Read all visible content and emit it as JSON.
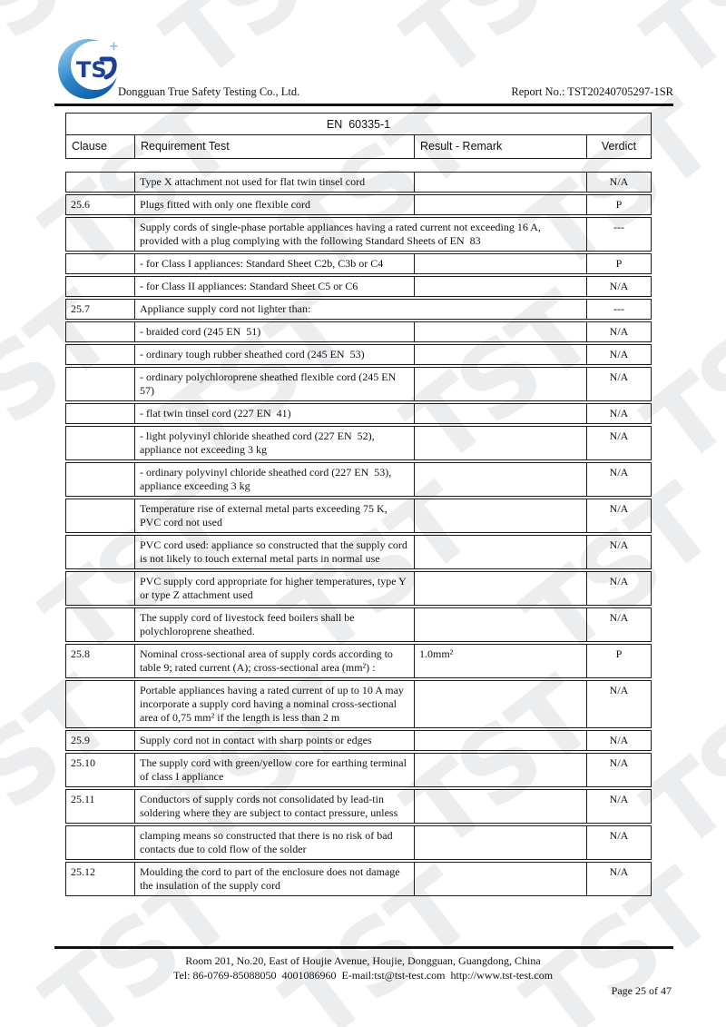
{
  "header": {
    "company": "Dongguan True Safety Testing Co., Ltd.",
    "report_no": "Report No.: TST20240705297-1SR",
    "logo_letters": "TS",
    "logo_plus": "+"
  },
  "table": {
    "title": "EN  60335-1",
    "columns": {
      "clause": "Clause",
      "requirement": "Requirement Test",
      "result": "Result - Remark",
      "verdict": "Verdict"
    },
    "rows": [
      {
        "clause": "",
        "requirement": "Type X attachment not used for flat twin tinsel cord",
        "result": "",
        "verdict": "N/A",
        "result_merged": false
      },
      {
        "clause": "25.6",
        "requirement": "Plugs fitted with only one flexible cord",
        "result": "",
        "verdict": "P",
        "result_merged": false
      },
      {
        "clause": "",
        "requirement": "Supply cords of single-phase portable appliances having a rated current not exceeding 16 A, provided with a plug complying with the following Standard Sheets of EN  83",
        "result": "",
        "verdict": "---",
        "result_merged": true
      },
      {
        "clause": "",
        "requirement": "- for Class I appliances: Standard Sheet C2b, C3b or C4",
        "result": "",
        "verdict": "P",
        "result_merged": false
      },
      {
        "clause": "",
        "requirement": "- for Class II appliances: Standard Sheet C5 or C6",
        "result": "",
        "verdict": "N/A",
        "result_merged": false
      },
      {
        "clause": "25.7",
        "requirement": "Appliance supply cord not lighter than:",
        "result": "",
        "verdict": "---",
        "result_merged": true
      },
      {
        "clause": "",
        "requirement": "- braided cord (245 EN  51)",
        "result": "",
        "verdict": "N/A",
        "result_merged": false
      },
      {
        "clause": "",
        "requirement": "- ordinary tough rubber sheathed cord (245 EN  53)",
        "result": "",
        "verdict": "N/A",
        "result_merged": false
      },
      {
        "clause": "",
        "requirement": "- ordinary polychloroprene sheathed flexible cord (245 EN  57)",
        "result": "",
        "verdict": "N/A",
        "result_merged": false
      },
      {
        "clause": "",
        "requirement": "- flat twin tinsel cord (227 EN  41)",
        "result": "",
        "verdict": "N/A",
        "result_merged": false
      },
      {
        "clause": "",
        "requirement": "- light polyvinyl chloride sheathed cord (227 EN  52), appliance not exceeding 3 kg",
        "result": "",
        "verdict": "N/A",
        "result_merged": false
      },
      {
        "clause": "",
        "requirement": "- ordinary polyvinyl chloride sheathed cord (227 EN  53), appliance exceeding 3 kg",
        "result": "",
        "verdict": "N/A",
        "result_merged": false
      },
      {
        "clause": "",
        "requirement": "Temperature rise of external metal parts exceeding 75 K, PVC cord not used",
        "result": "",
        "verdict": "N/A",
        "result_merged": false
      },
      {
        "clause": "",
        "requirement": "PVC cord used: appliance so constructed that the supply cord is not likely to touch external metal parts in normal use",
        "result": "",
        "verdict": "N/A",
        "result_merged": false
      },
      {
        "clause": "",
        "requirement": "PVC supply cord appropriate for higher temperatures, type Y or type Z attachment used",
        "result": "",
        "verdict": "N/A",
        "result_merged": false
      },
      {
        "clause": "",
        "requirement": "The supply cord of livestock feed boilers shall be polychloroprene sheathed.",
        "result": "",
        "verdict": "N/A",
        "result_merged": false
      },
      {
        "clause": "25.8",
        "requirement": "Nominal cross-sectional area of supply cords according to table 9; rated current (A); cross-sectional area (mm²) :",
        "result": "1.0mm²",
        "verdict": "P",
        "result_merged": false
      },
      {
        "clause": "",
        "requirement": "Portable appliances having a rated current of up to 10 A may incorporate a supply cord having a nominal cross-sectional area of 0,75 mm² if the length is less than 2 m",
        "result": "",
        "verdict": "N/A",
        "result_merged": false
      },
      {
        "clause": "25.9",
        "requirement": "Supply cord not in contact with sharp points or edges",
        "result": "",
        "verdict": "N/A",
        "result_merged": false
      },
      {
        "clause": "25.10",
        "requirement": "The supply cord with green/yellow core for earthing terminal of class I appliance",
        "result": "",
        "verdict": "N/A",
        "result_merged": false
      },
      {
        "clause": "25.11",
        "requirement": "Conductors of supply cords not consolidated by lead-tin soldering where they are subject to contact pressure, unless",
        "result": "",
        "verdict": "N/A",
        "result_merged": false
      },
      {
        "clause": "",
        "requirement": "clamping means so constructed that there is no risk of bad contacts due to cold flow of the solder",
        "result": "",
        "verdict": "N/A",
        "result_merged": false
      },
      {
        "clause": "25.12",
        "requirement": "Moulding the cord to part of the enclosure does not damage the insulation of the supply cord",
        "result": "",
        "verdict": "N/A",
        "result_merged": false
      }
    ]
  },
  "footer": {
    "address": "Room 201, No.20, East of Houjie Avenue, Houjie, Dongguan, Guangdong, China",
    "contacts": "Tel: 86-0769-85088050  4001086960  E-mail:tst@tst-test.com  http://www.tst-test.com",
    "page": "Page 25 of 47"
  },
  "watermark": {
    "text": "TST"
  }
}
